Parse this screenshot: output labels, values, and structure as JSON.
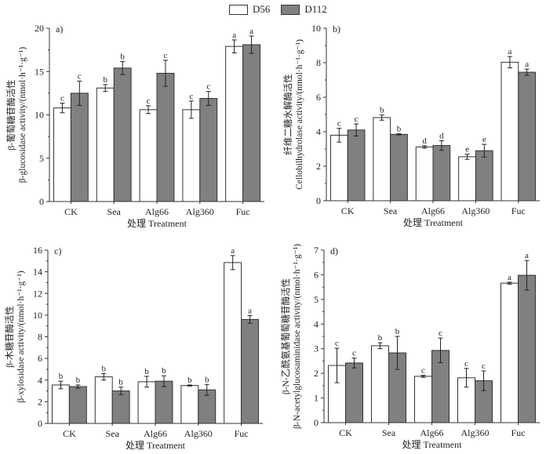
{
  "legend": [
    {
      "name": "D56",
      "color": "#ffffff"
    },
    {
      "name": "D112",
      "color": "#808080"
    }
  ],
  "chart_data": [
    {
      "type": "bar",
      "panel": "a)",
      "categories": [
        "CK",
        "Sea",
        "Alg66",
        "Alg360",
        "Fuc"
      ],
      "xlabel": "处理 Treatment",
      "ylabel_cn": "β-葡萄糖苷酶活性",
      "ylabel_en": "β-glucosidase activity/(nmol·h⁻¹·g⁻¹)",
      "ylim": [
        0,
        20
      ],
      "yticks": [
        0,
        5,
        10,
        15,
        20
      ],
      "series": [
        {
          "name": "D56",
          "values": [
            10.8,
            13.1,
            10.6,
            10.6,
            17.9
          ],
          "errors": [
            0.55,
            0.4,
            0.45,
            1.0,
            0.75
          ],
          "letters": [
            "c",
            "b",
            "c",
            "c",
            "a"
          ]
        },
        {
          "name": "D112",
          "values": [
            12.5,
            15.4,
            14.8,
            11.9,
            18.1
          ],
          "errors": [
            1.4,
            0.75,
            1.5,
            0.8,
            1.0
          ],
          "letters": [
            "c",
            "b",
            "c",
            "c",
            "a"
          ]
        }
      ]
    },
    {
      "type": "bar",
      "panel": "b)",
      "categories": [
        "CK",
        "Sea",
        "Alg66",
        "Alg360",
        "Fuc"
      ],
      "xlabel": "处理 Treatment",
      "ylabel_cn": "纤维二糖水解酶活性",
      "ylabel_en": "Cellobilhydrolase activity/(nmol·h⁻¹·g⁻¹)",
      "ylim": [
        0,
        10
      ],
      "yticks": [
        0,
        2,
        4,
        6,
        8,
        10
      ],
      "series": [
        {
          "name": "D56",
          "values": [
            3.8,
            4.82,
            3.12,
            2.55,
            8.03
          ],
          "errors": [
            0.4,
            0.15,
            0.07,
            0.15,
            0.33
          ],
          "letters": [
            "c",
            "b",
            "d",
            "e",
            "a"
          ]
        },
        {
          "name": "D112",
          "values": [
            4.1,
            3.85,
            3.2,
            2.9,
            7.45
          ],
          "errors": [
            0.35,
            0.03,
            0.28,
            0.37,
            0.18
          ],
          "letters": [
            "c",
            "b",
            "d",
            "e",
            "a"
          ]
        }
      ]
    },
    {
      "type": "bar",
      "panel": "c)",
      "categories": [
        "CK",
        "Sea",
        "Alg66",
        "Alg360",
        "Fuc"
      ],
      "xlabel": "处理 Treatment",
      "ylabel_cn": "β-木糖苷酶活性",
      "ylabel_en": "β-xylosidase activity/(nmol·h⁻¹·g⁻¹)",
      "ylim": [
        0,
        16
      ],
      "yticks": [
        0,
        2,
        4,
        6,
        8,
        10,
        12,
        14,
        16
      ],
      "series": [
        {
          "name": "D56",
          "values": [
            3.55,
            4.3,
            3.85,
            3.5,
            14.85
          ],
          "errors": [
            0.35,
            0.3,
            0.5,
            0.05,
            0.65
          ],
          "letters": [
            "b",
            "b",
            "b",
            "b",
            "a"
          ]
        },
        {
          "name": "D112",
          "values": [
            3.4,
            3.0,
            3.9,
            3.1,
            9.6
          ],
          "errors": [
            0.15,
            0.35,
            0.5,
            0.5,
            0.35
          ],
          "letters": [
            "b",
            "b",
            "b",
            "b",
            "a"
          ]
        }
      ]
    },
    {
      "type": "bar",
      "panel": "d)",
      "categories": [
        "CK",
        "Sea",
        "Alg66",
        "Alg360",
        "Fuc"
      ],
      "xlabel": "处理 Treatment",
      "ylabel_cn": "β-N-乙酰氨基葡萄糖苷酶活性",
      "ylabel_en": "β-N-acetylglucosaminidase activity/(nmol·h⁻¹·g⁻¹)",
      "ylim": [
        0,
        7
      ],
      "yticks": [
        0,
        1,
        2,
        3,
        4,
        5,
        6,
        7
      ],
      "series": [
        {
          "name": "D56",
          "values": [
            2.32,
            3.12,
            1.88,
            1.82,
            5.66
          ],
          "errors": [
            0.7,
            0.12,
            0.04,
            0.38,
            0.04
          ],
          "letters": [
            "c",
            "b",
            "c",
            "c",
            "a"
          ]
        },
        {
          "name": "D112",
          "values": [
            2.42,
            2.83,
            2.93,
            1.7,
            5.98
          ],
          "errors": [
            0.2,
            0.67,
            0.5,
            0.4,
            0.6
          ],
          "letters": [
            "c",
            "b",
            "c",
            "c",
            "a"
          ]
        }
      ]
    }
  ]
}
